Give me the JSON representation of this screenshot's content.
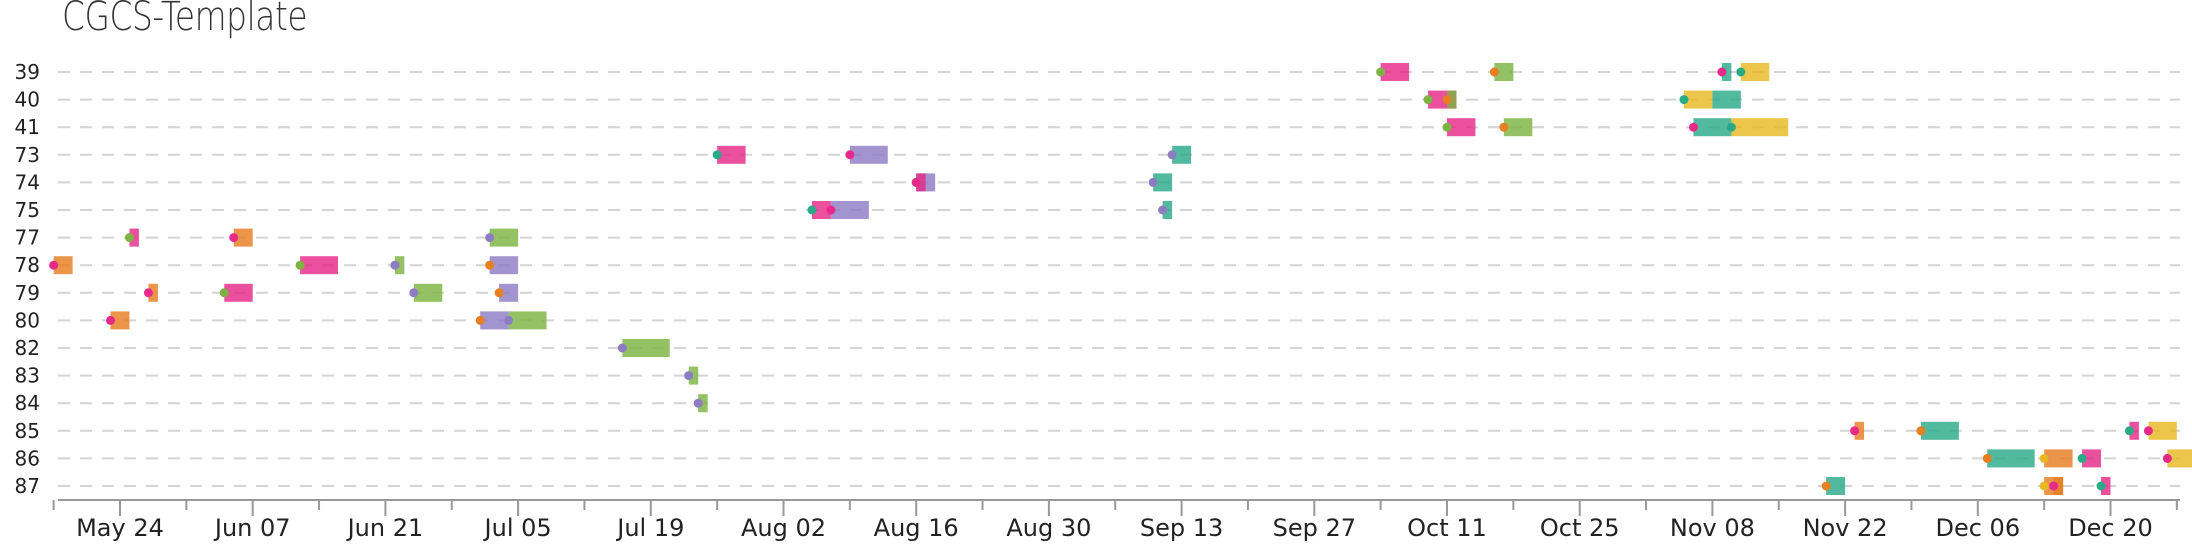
{
  "chart_data": {
    "type": "gantt",
    "title": "CGCS-Template",
    "xlabel": "",
    "ylabel": "",
    "x_ticks": [
      "May 24",
      "Jun 07",
      "Jun 21",
      "Jul 05",
      "Jul 19",
      "Aug 02",
      "Aug 16",
      "Aug 30",
      "Sep 13",
      "Sep 27",
      "Oct 11",
      "Oct 25",
      "Nov 08",
      "Nov 22",
      "Dec 06",
      "Dec 20"
    ],
    "x_range": [
      "May 17",
      "Dec 29"
    ],
    "grid": "dashed horizontal lines per row",
    "legend": "none",
    "colors": {
      "pink": "#E7298A",
      "orange": "#E67E22",
      "green": "#7CB342",
      "purple": "#8E7CC3",
      "teal": "#2BAA88",
      "yellow": "#E8B923"
    },
    "categories": [
      "39",
      "40",
      "41",
      "73",
      "74",
      "75",
      "77",
      "78",
      "79",
      "80",
      "82",
      "83",
      "84",
      "85",
      "86",
      "87"
    ],
    "tasks": [
      {
        "row": "39",
        "start": "Oct 04",
        "end": "Oct 07",
        "color": "pink",
        "marker": "green"
      },
      {
        "row": "39",
        "start": "Oct 16",
        "end": "Oct 18",
        "color": "green",
        "marker": "orange"
      },
      {
        "row": "39",
        "start": "Nov 09",
        "end": "Nov 10",
        "color": "teal",
        "marker": "pink"
      },
      {
        "row": "39",
        "start": "Nov 11",
        "end": "Nov 14",
        "color": "yellow",
        "marker": "teal"
      },
      {
        "row": "40",
        "start": "Oct 09",
        "end": "Oct 12",
        "color": "pink",
        "marker": "green"
      },
      {
        "row": "40",
        "start": "Oct 11",
        "end": "Oct 12",
        "color": "green",
        "marker": "orange"
      },
      {
        "row": "40",
        "start": "Nov 05",
        "end": "Nov 08",
        "color": "yellow",
        "marker": "teal"
      },
      {
        "row": "40",
        "start": "Nov 08",
        "end": "Nov 11",
        "color": "teal",
        "marker": "none"
      },
      {
        "row": "41",
        "start": "Oct 11",
        "end": "Oct 14",
        "color": "pink",
        "marker": "green"
      },
      {
        "row": "41",
        "start": "Oct 17",
        "end": "Oct 20",
        "color": "green",
        "marker": "orange"
      },
      {
        "row": "41",
        "start": "Nov 06",
        "end": "Nov 10",
        "color": "teal",
        "marker": "pink"
      },
      {
        "row": "41",
        "start": "Nov 10",
        "end": "Nov 16",
        "color": "yellow",
        "marker": "teal"
      },
      {
        "row": "73",
        "start": "Jul 26",
        "end": "Jul 29",
        "color": "pink",
        "marker": "teal"
      },
      {
        "row": "73",
        "start": "Aug 09",
        "end": "Aug 13",
        "color": "purple",
        "marker": "pink"
      },
      {
        "row": "73",
        "start": "Sep 12",
        "end": "Sep 14",
        "color": "teal",
        "marker": "purple"
      },
      {
        "row": "74",
        "start": "Aug 16",
        "end": "Aug 18",
        "color": "purple",
        "marker": "teal"
      },
      {
        "row": "74",
        "start": "Aug 16",
        "end": "Aug 17",
        "color": "pink",
        "marker": "pink"
      },
      {
        "row": "74",
        "start": "Sep 10",
        "end": "Sep 12",
        "color": "teal",
        "marker": "purple"
      },
      {
        "row": "75",
        "start": "Aug 05",
        "end": "Aug 07",
        "color": "pink",
        "marker": "teal"
      },
      {
        "row": "75",
        "start": "Aug 07",
        "end": "Aug 11",
        "color": "purple",
        "marker": "pink"
      },
      {
        "row": "75",
        "start": "Sep 11",
        "end": "Sep 12",
        "color": "teal",
        "marker": "purple"
      },
      {
        "row": "77",
        "start": "May 25",
        "end": "May 26",
        "color": "pink",
        "marker": "green"
      },
      {
        "row": "77",
        "start": "Jun 05",
        "end": "Jun 07",
        "color": "orange",
        "marker": "pink"
      },
      {
        "row": "77",
        "start": "Jul 02",
        "end": "Jul 05",
        "color": "green",
        "marker": "purple"
      },
      {
        "row": "78",
        "start": "May 17",
        "end": "May 19",
        "color": "orange",
        "marker": "pink"
      },
      {
        "row": "78",
        "start": "Jun 12",
        "end": "Jun 16",
        "color": "pink",
        "marker": "green"
      },
      {
        "row": "78",
        "start": "Jun 22",
        "end": "Jun 23",
        "color": "green",
        "marker": "purple"
      },
      {
        "row": "78",
        "start": "Jul 02",
        "end": "Jul 05",
        "color": "purple",
        "marker": "orange"
      },
      {
        "row": "79",
        "start": "May 27",
        "end": "May 28",
        "color": "orange",
        "marker": "pink"
      },
      {
        "row": "79",
        "start": "Jun 04",
        "end": "Jun 07",
        "color": "pink",
        "marker": "green"
      },
      {
        "row": "79",
        "start": "Jun 24",
        "end": "Jun 27",
        "color": "green",
        "marker": "purple"
      },
      {
        "row": "79",
        "start": "Jul 03",
        "end": "Jul 05",
        "color": "purple",
        "marker": "orange"
      },
      {
        "row": "80",
        "start": "May 23",
        "end": "May 25",
        "color": "orange",
        "marker": "pink"
      },
      {
        "row": "80",
        "start": "Jul 01",
        "end": "Jul 04",
        "color": "purple",
        "marker": "orange"
      },
      {
        "row": "80",
        "start": "Jul 04",
        "end": "Jul 08",
        "color": "green",
        "marker": "purple"
      },
      {
        "row": "82",
        "start": "Jul 16",
        "end": "Jul 21",
        "color": "green",
        "marker": "purple"
      },
      {
        "row": "83",
        "start": "Jul 23",
        "end": "Jul 24",
        "color": "green",
        "marker": "purple"
      },
      {
        "row": "84",
        "start": "Jul 24",
        "end": "Jul 25",
        "color": "green",
        "marker": "purple"
      },
      {
        "row": "85",
        "start": "Nov 23",
        "end": "Nov 24",
        "color": "orange",
        "marker": "pink"
      },
      {
        "row": "85",
        "start": "Nov 30",
        "end": "Dec 04",
        "color": "teal",
        "marker": "orange"
      },
      {
        "row": "85",
        "start": "Dec 22",
        "end": "Dec 23",
        "color": "pink",
        "marker": "teal"
      },
      {
        "row": "85",
        "start": "Dec 24",
        "end": "Dec 27",
        "color": "yellow",
        "marker": "pink"
      },
      {
        "row": "86",
        "start": "Dec 07",
        "end": "Dec 12",
        "color": "teal",
        "marker": "orange"
      },
      {
        "row": "86",
        "start": "Dec 13",
        "end": "Dec 16",
        "color": "orange",
        "marker": "yellow"
      },
      {
        "row": "86",
        "start": "Dec 17",
        "end": "Dec 19",
        "color": "pink",
        "marker": "teal"
      },
      {
        "row": "86",
        "start": "Dec 26",
        "end": "Dec 29",
        "color": "yellow",
        "marker": "pink"
      },
      {
        "row": "87",
        "start": "Nov 20",
        "end": "Nov 22",
        "color": "teal",
        "marker": "orange"
      },
      {
        "row": "87",
        "start": "Dec 13",
        "end": "Dec 15",
        "color": "orange",
        "marker": "yellow"
      },
      {
        "row": "87",
        "start": "Dec 14",
        "end": "Dec 15",
        "color": "orange",
        "marker": "pink"
      },
      {
        "row": "87",
        "start": "Dec 19",
        "end": "Dec 20",
        "color": "pink",
        "marker": "teal"
      }
    ]
  }
}
